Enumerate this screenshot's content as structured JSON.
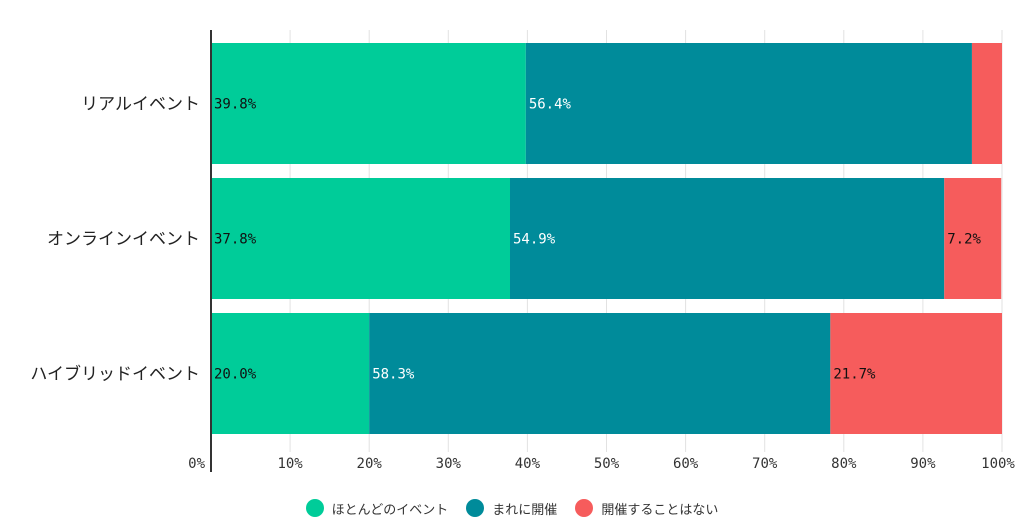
{
  "chart_data": {
    "type": "bar",
    "orientation": "horizontal",
    "stacked": true,
    "categories": [
      "リアルイベント",
      "オンラインイベント",
      "ハイブリッドイベント"
    ],
    "series": [
      {
        "name": "ほとんどのイベント",
        "color": "#00cc99",
        "label_color": "#111111",
        "values": [
          39.8,
          37.8,
          20.0
        ],
        "labels": [
          "39.8%",
          "37.8%",
          "20.0%"
        ]
      },
      {
        "name": "まれに開催",
        "color": "#008b9a",
        "label_color": "#ffffff",
        "values": [
          56.4,
          54.9,
          58.3
        ],
        "labels": [
          "56.4%",
          "54.9%",
          "58.3%"
        ]
      },
      {
        "name": "開催することはない",
        "color": "#f65c5c",
        "label_color": "#111111",
        "values": [
          3.8,
          7.2,
          21.7
        ],
        "labels": [
          "",
          "7.2%",
          "21.7%"
        ]
      }
    ],
    "xlim": [
      0,
      100
    ],
    "x_ticks": [
      "0%",
      "10%",
      "20%",
      "30%",
      "40%",
      "50%",
      "60%",
      "70%",
      "80%",
      "90%",
      "100%"
    ],
    "grid": true,
    "legend_position": "bottom"
  }
}
